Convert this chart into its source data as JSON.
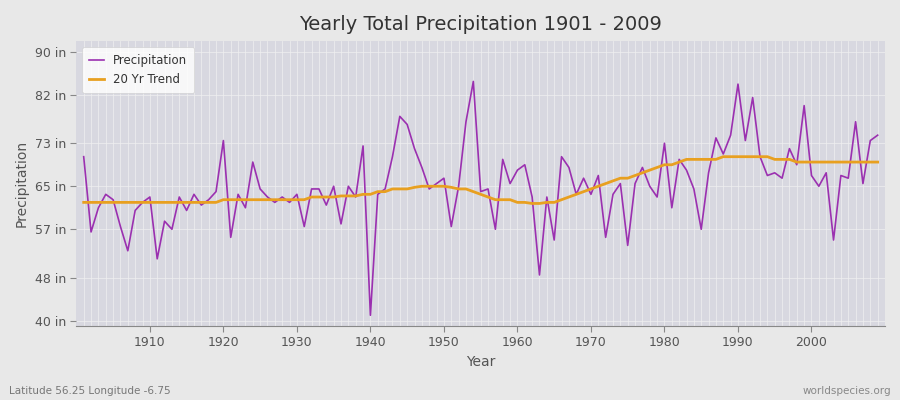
{
  "title": "Yearly Total Precipitation 1901 - 2009",
  "xlabel": "Year",
  "ylabel": "Precipitation",
  "bottom_left_label": "Latitude 56.25 Longitude -6.75",
  "bottom_right_label": "worldspecies.org",
  "years": [
    1901,
    1902,
    1903,
    1904,
    1905,
    1906,
    1907,
    1908,
    1909,
    1910,
    1911,
    1912,
    1913,
    1914,
    1915,
    1916,
    1917,
    1918,
    1919,
    1920,
    1921,
    1922,
    1923,
    1924,
    1925,
    1926,
    1927,
    1928,
    1929,
    1930,
    1931,
    1932,
    1933,
    1934,
    1935,
    1936,
    1937,
    1938,
    1939,
    1940,
    1941,
    1942,
    1943,
    1944,
    1945,
    1946,
    1947,
    1948,
    1949,
    1950,
    1951,
    1952,
    1953,
    1954,
    1955,
    1956,
    1957,
    1958,
    1959,
    1960,
    1961,
    1962,
    1963,
    1964,
    1965,
    1966,
    1967,
    1968,
    1969,
    1970,
    1971,
    1972,
    1973,
    1974,
    1975,
    1976,
    1977,
    1978,
    1979,
    1980,
    1981,
    1982,
    1983,
    1984,
    1985,
    1986,
    1987,
    1988,
    1989,
    1990,
    1991,
    1992,
    1993,
    1994,
    1995,
    1996,
    1997,
    1998,
    1999,
    2000,
    2001,
    2002,
    2003,
    2004,
    2005,
    2006,
    2007,
    2008,
    2009
  ],
  "precip": [
    70.5,
    56.5,
    61.0,
    63.5,
    62.5,
    57.5,
    53.0,
    60.5,
    62.0,
    63.0,
    51.5,
    58.5,
    57.0,
    63.0,
    60.5,
    63.5,
    61.5,
    62.5,
    64.0,
    73.5,
    55.5,
    63.5,
    61.0,
    69.5,
    64.5,
    63.0,
    62.0,
    63.0,
    62.0,
    63.5,
    57.5,
    64.5,
    64.5,
    61.5,
    65.0,
    58.0,
    65.0,
    63.0,
    72.5,
    41.0,
    63.5,
    64.5,
    70.5,
    78.0,
    76.5,
    72.0,
    68.5,
    64.5,
    65.5,
    66.5,
    57.5,
    65.0,
    77.0,
    84.5,
    64.0,
    64.5,
    57.0,
    70.0,
    65.5,
    68.0,
    69.0,
    63.0,
    48.5,
    63.0,
    55.0,
    70.5,
    68.5,
    63.5,
    66.5,
    63.5,
    67.0,
    55.5,
    63.5,
    65.5,
    54.0,
    65.5,
    68.5,
    65.0,
    63.0,
    73.0,
    61.0,
    70.0,
    68.0,
    64.5,
    57.0,
    67.5,
    74.0,
    71.0,
    74.5,
    84.0,
    73.5,
    81.5,
    70.5,
    67.0,
    67.5,
    66.5,
    72.0,
    69.0,
    80.0,
    67.0,
    65.0,
    67.5,
    55.0,
    67.0,
    66.5,
    77.0,
    65.5,
    73.5,
    74.5
  ],
  "trend": [
    62.0,
    62.0,
    62.0,
    62.0,
    62.0,
    62.0,
    62.0,
    62.0,
    62.0,
    62.0,
    62.0,
    62.0,
    62.0,
    62.0,
    62.0,
    62.0,
    62.0,
    62.0,
    62.0,
    62.5,
    62.5,
    62.5,
    62.5,
    62.5,
    62.5,
    62.5,
    62.5,
    62.5,
    62.5,
    62.5,
    62.5,
    63.0,
    63.0,
    63.0,
    63.0,
    63.2,
    63.2,
    63.2,
    63.5,
    63.5,
    64.0,
    64.0,
    64.5,
    64.5,
    64.5,
    64.8,
    65.0,
    65.0,
    65.0,
    65.0,
    64.8,
    64.5,
    64.5,
    64.0,
    63.5,
    63.0,
    62.5,
    62.5,
    62.5,
    62.0,
    62.0,
    61.8,
    61.8,
    62.0,
    62.0,
    62.5,
    63.0,
    63.5,
    64.0,
    64.5,
    65.0,
    65.5,
    66.0,
    66.5,
    66.5,
    67.0,
    67.5,
    68.0,
    68.5,
    69.0,
    69.0,
    69.5,
    70.0,
    70.0,
    70.0,
    70.0,
    70.0,
    70.5,
    70.5,
    70.5,
    70.5,
    70.5,
    70.5,
    70.5,
    70.0,
    70.0,
    70.0,
    69.5,
    69.5,
    69.5,
    69.5,
    69.5,
    69.5,
    69.5,
    69.5,
    69.5,
    69.5,
    69.5,
    69.5
  ],
  "precip_color": "#9b30b0",
  "trend_color": "#e8a020",
  "fig_bg_color": "#e8e8e8",
  "plot_bg_color": "#d8d8e0",
  "grid_color": "#f0f0f0",
  "yticks": [
    40,
    48,
    57,
    65,
    73,
    82,
    90
  ],
  "ytick_labels": [
    "40 in",
    "48 in",
    "57 in",
    "65 in",
    "73 in",
    "82 in",
    "90 in"
  ],
  "ylim": [
    39,
    92
  ],
  "xlim": [
    1900,
    2010
  ],
  "xticks": [
    1910,
    1920,
    1930,
    1940,
    1950,
    1960,
    1970,
    1980,
    1990,
    2000
  ]
}
